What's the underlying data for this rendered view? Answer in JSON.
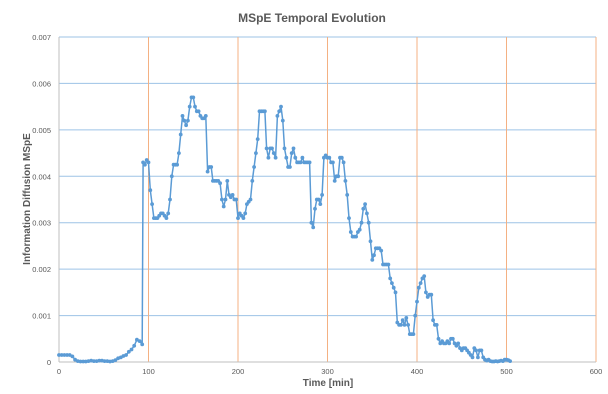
{
  "chart_data": {
    "type": "line",
    "title": "MSpE Temporal Evolution",
    "xlabel": "Time [min]",
    "ylabel": "Information Diffusion MSpE",
    "xlim": [
      0,
      600
    ],
    "ylim": [
      0,
      0.007
    ],
    "xticks": [
      0,
      100,
      200,
      300,
      400,
      500,
      600
    ],
    "yticks": [
      "0",
      "0.001",
      "0.002",
      "0.003",
      "0.004",
      "0.005",
      "0.006",
      "0.007"
    ],
    "grid": "both",
    "legend": "none",
    "colors": {
      "line": "#5b9bd5",
      "hgrid": "#9dc3e6",
      "vgrid": "#f4b183",
      "axis": "#bfbfbf",
      "text": "#595959"
    },
    "series": [
      {
        "name": "",
        "points": [
          [
            0,
            0.00015
          ],
          [
            3,
            0.00015
          ],
          [
            6,
            0.00015
          ],
          [
            9,
            0.00015
          ],
          [
            12,
            0.00015
          ],
          [
            15,
            0.00012
          ],
          [
            18,
            5e-05
          ],
          [
            21,
            2e-05
          ],
          [
            24,
            1e-05
          ],
          [
            27,
            1e-05
          ],
          [
            30,
            1e-05
          ],
          [
            33,
            2e-05
          ],
          [
            36,
            3e-05
          ],
          [
            39,
            2e-05
          ],
          [
            42,
            2e-05
          ],
          [
            45,
            3e-05
          ],
          [
            48,
            3e-05
          ],
          [
            51,
            2e-05
          ],
          [
            54,
            2e-05
          ],
          [
            57,
            1e-05
          ],
          [
            60,
            2e-05
          ],
          [
            63,
            4e-05
          ],
          [
            66,
            8e-05
          ],
          [
            69,
            0.0001
          ],
          [
            72,
            0.00013
          ],
          [
            75,
            0.00015
          ],
          [
            78,
            0.00022
          ],
          [
            81,
            0.00027
          ],
          [
            84,
            0.00035
          ],
          [
            87,
            0.00048
          ],
          [
            90,
            0.00045
          ],
          [
            93,
            0.00038
          ],
          [
            94,
            0.0043
          ],
          [
            96,
            0.00425
          ],
          [
            98,
            0.00435
          ],
          [
            100,
            0.0043
          ],
          [
            102,
            0.0037
          ],
          [
            104,
            0.0034
          ],
          [
            106,
            0.0031
          ],
          [
            108,
            0.0031
          ],
          [
            110,
            0.0031
          ],
          [
            112,
            0.00315
          ],
          [
            114,
            0.0032
          ],
          [
            116,
            0.0032
          ],
          [
            118,
            0.00315
          ],
          [
            120,
            0.0031
          ],
          [
            122,
            0.0032
          ],
          [
            124,
            0.0035
          ],
          [
            126,
            0.004
          ],
          [
            128,
            0.00425
          ],
          [
            130,
            0.00425
          ],
          [
            132,
            0.00425
          ],
          [
            134,
            0.0045
          ],
          [
            136,
            0.0049
          ],
          [
            138,
            0.0053
          ],
          [
            140,
            0.0052
          ],
          [
            142,
            0.0051
          ],
          [
            144,
            0.0052
          ],
          [
            146,
            0.0055
          ],
          [
            148,
            0.0057
          ],
          [
            150,
            0.0057
          ],
          [
            152,
            0.0055
          ],
          [
            154,
            0.0054
          ],
          [
            156,
            0.0054
          ],
          [
            158,
            0.0053
          ],
          [
            160,
            0.00525
          ],
          [
            162,
            0.00525
          ],
          [
            164,
            0.0053
          ],
          [
            166,
            0.0041
          ],
          [
            168,
            0.0042
          ],
          [
            170,
            0.0042
          ],
          [
            172,
            0.0039
          ],
          [
            174,
            0.0039
          ],
          [
            176,
            0.0039
          ],
          [
            178,
            0.0039
          ],
          [
            180,
            0.00385
          ],
          [
            182,
            0.0035
          ],
          [
            184,
            0.00335
          ],
          [
            186,
            0.0035
          ],
          [
            188,
            0.0039
          ],
          [
            190,
            0.0036
          ],
          [
            192,
            0.00355
          ],
          [
            194,
            0.0036
          ],
          [
            196,
            0.0035
          ],
          [
            198,
            0.0035
          ],
          [
            200,
            0.0031
          ],
          [
            202,
            0.0032
          ],
          [
            204,
            0.00315
          ],
          [
            206,
            0.0031
          ],
          [
            208,
            0.0032
          ],
          [
            210,
            0.0034
          ],
          [
            212,
            0.00345
          ],
          [
            214,
            0.0035
          ],
          [
            216,
            0.0039
          ],
          [
            218,
            0.0042
          ],
          [
            220,
            0.0045
          ],
          [
            222,
            0.0048
          ],
          [
            224,
            0.0054
          ],
          [
            226,
            0.0054
          ],
          [
            228,
            0.0054
          ],
          [
            230,
            0.0054
          ],
          [
            232,
            0.0046
          ],
          [
            234,
            0.0044
          ],
          [
            236,
            0.0046
          ],
          [
            238,
            0.0046
          ],
          [
            240,
            0.0045
          ],
          [
            242,
            0.0044
          ],
          [
            244,
            0.0053
          ],
          [
            246,
            0.0054
          ],
          [
            248,
            0.0055
          ],
          [
            250,
            0.0052
          ],
          [
            252,
            0.0046
          ],
          [
            254,
            0.0044
          ],
          [
            256,
            0.0042
          ],
          [
            258,
            0.0042
          ],
          [
            260,
            0.0045
          ],
          [
            262,
            0.0046
          ],
          [
            264,
            0.0044
          ],
          [
            266,
            0.0043
          ],
          [
            268,
            0.0043
          ],
          [
            270,
            0.0043
          ],
          [
            272,
            0.0044
          ],
          [
            274,
            0.0043
          ],
          [
            276,
            0.0043
          ],
          [
            278,
            0.0043
          ],
          [
            280,
            0.0043
          ],
          [
            282,
            0.003
          ],
          [
            284,
            0.0029
          ],
          [
            286,
            0.0033
          ],
          [
            288,
            0.0035
          ],
          [
            290,
            0.0035
          ],
          [
            292,
            0.0034
          ],
          [
            294,
            0.0036
          ],
          [
            296,
            0.0044
          ],
          [
            298,
            0.00445
          ],
          [
            300,
            0.0044
          ],
          [
            302,
            0.0044
          ],
          [
            304,
            0.0043
          ],
          [
            306,
            0.0043
          ],
          [
            308,
            0.0039
          ],
          [
            310,
            0.004
          ],
          [
            312,
            0.004
          ],
          [
            314,
            0.0044
          ],
          [
            316,
            0.0044
          ],
          [
            318,
            0.0043
          ],
          [
            320,
            0.0039
          ],
          [
            322,
            0.0036
          ],
          [
            324,
            0.0031
          ],
          [
            326,
            0.0028
          ],
          [
            328,
            0.0027
          ],
          [
            330,
            0.0027
          ],
          [
            332,
            0.0027
          ],
          [
            334,
            0.0028
          ],
          [
            336,
            0.00285
          ],
          [
            338,
            0.003
          ],
          [
            340,
            0.0033
          ],
          [
            342,
            0.0034
          ],
          [
            344,
            0.0032
          ],
          [
            346,
            0.003
          ],
          [
            348,
            0.0026
          ],
          [
            350,
            0.0022
          ],
          [
            352,
            0.0023
          ],
          [
            354,
            0.00245
          ],
          [
            356,
            0.00245
          ],
          [
            358,
            0.00245
          ],
          [
            360,
            0.0024
          ],
          [
            362,
            0.0021
          ],
          [
            364,
            0.0021
          ],
          [
            366,
            0.0021
          ],
          [
            368,
            0.0021
          ],
          [
            370,
            0.0018
          ],
          [
            372,
            0.0017
          ],
          [
            374,
            0.0016
          ],
          [
            376,
            0.0015
          ],
          [
            378,
            0.00085
          ],
          [
            380,
            0.0008
          ],
          [
            382,
            0.0008
          ],
          [
            384,
            0.0009
          ],
          [
            386,
            0.0008
          ],
          [
            388,
            0.00095
          ],
          [
            390,
            0.0008
          ],
          [
            392,
            0.0006
          ],
          [
            394,
            0.0006
          ],
          [
            396,
            0.0006
          ],
          [
            398,
            0.001
          ],
          [
            400,
            0.0013
          ],
          [
            402,
            0.0016
          ],
          [
            404,
            0.0017
          ],
          [
            406,
            0.0018
          ],
          [
            408,
            0.00185
          ],
          [
            410,
            0.0015
          ],
          [
            412,
            0.0014
          ],
          [
            414,
            0.00145
          ],
          [
            416,
            0.00145
          ],
          [
            418,
            0.0009
          ],
          [
            420,
            0.0008
          ],
          [
            422,
            0.0008
          ],
          [
            424,
            0.0005
          ],
          [
            426,
            0.0004
          ],
          [
            428,
            0.00045
          ],
          [
            430,
            0.0004
          ],
          [
            432,
            0.0004
          ],
          [
            434,
            0.00045
          ],
          [
            436,
            0.0004
          ],
          [
            438,
            0.0005
          ],
          [
            440,
            0.0005
          ],
          [
            442,
            0.0004
          ],
          [
            444,
            0.00035
          ],
          [
            446,
            0.0004
          ],
          [
            448,
            0.0003
          ],
          [
            450,
            0.00025
          ],
          [
            452,
            0.0003
          ],
          [
            454,
            0.0003
          ],
          [
            456,
            0.00025
          ],
          [
            458,
            0.0002
          ],
          [
            460,
            0.00015
          ],
          [
            462,
            0.0001
          ],
          [
            464,
            0.0003
          ],
          [
            466,
            0.00025
          ],
          [
            468,
            0.0001
          ],
          [
            470,
            0.00025
          ],
          [
            472,
            0.00025
          ],
          [
            474,
            0.0001
          ],
          [
            476,
            5e-05
          ],
          [
            478,
            3e-05
          ],
          [
            480,
            5e-05
          ],
          [
            482,
            2e-05
          ],
          [
            484,
            1e-05
          ],
          [
            486,
            1e-05
          ],
          [
            488,
            2e-05
          ],
          [
            490,
            1e-05
          ],
          [
            492,
            2e-05
          ],
          [
            494,
            3e-05
          ],
          [
            496,
            2e-05
          ],
          [
            498,
            5e-05
          ],
          [
            500,
            5e-05
          ],
          [
            502,
            4e-05
          ],
          [
            504,
            2e-05
          ]
        ]
      }
    ]
  }
}
